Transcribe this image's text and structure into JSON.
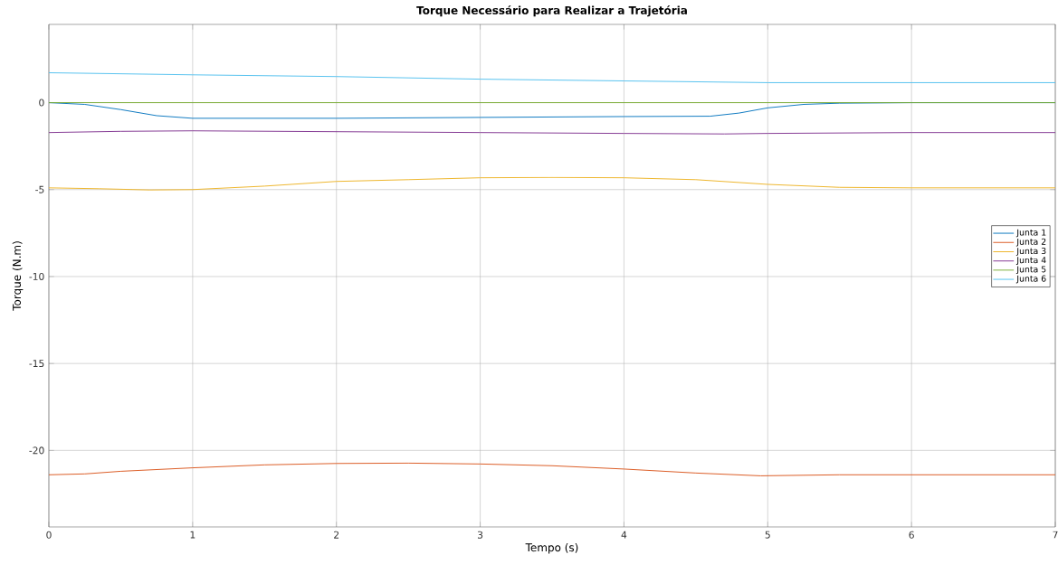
{
  "chart_data": {
    "type": "line",
    "title": "Torque Necessário para Realizar a Trajetória",
    "xlabel": "Tempo (s)",
    "ylabel": "Torque (N.m)",
    "xlim": [
      0,
      7
    ],
    "ylim": [
      -24.4,
      4.5
    ],
    "xticks": [
      0,
      1,
      2,
      3,
      4,
      5,
      6,
      7
    ],
    "yticks": [
      -20,
      -15,
      -10,
      -5,
      0
    ],
    "grid": true,
    "legend": "right",
    "line_style": "solid",
    "marker": "none",
    "series": [
      {
        "name": "Junta 1",
        "color": "#0072bd",
        "x": [
          0,
          0.25,
          0.5,
          0.75,
          1,
          2,
          3,
          4,
          4.6,
          4.8,
          5,
          5.25,
          5.5,
          6,
          7
        ],
        "values": [
          0,
          -0.1,
          -0.4,
          -0.75,
          -0.9,
          -0.9,
          -0.85,
          -0.8,
          -0.78,
          -0.6,
          -0.3,
          -0.1,
          -0.03,
          0,
          0
        ]
      },
      {
        "name": "Junta 2",
        "color": "#d95319",
        "x": [
          0,
          0.25,
          0.5,
          1,
          1.5,
          2,
          2.5,
          3,
          3.5,
          4,
          4.5,
          4.95,
          5.5,
          6,
          7
        ],
        "values": [
          -21.4,
          -21.35,
          -21.2,
          -21.0,
          -20.83,
          -20.75,
          -20.73,
          -20.78,
          -20.88,
          -21.07,
          -21.3,
          -21.46,
          -21.4,
          -21.4,
          -21.4
        ]
      },
      {
        "name": "Junta 3",
        "color": "#edb120",
        "x": [
          0,
          0.35,
          0.7,
          1,
          1.5,
          2,
          2.5,
          3,
          3.5,
          4,
          4.5,
          5,
          5.5,
          6,
          7
        ],
        "values": [
          -4.9,
          -4.95,
          -5.02,
          -5.0,
          -4.8,
          -4.53,
          -4.43,
          -4.32,
          -4.3,
          -4.32,
          -4.43,
          -4.7,
          -4.87,
          -4.9,
          -4.9
        ]
      },
      {
        "name": "Junta 4",
        "color": "#7e2f8e",
        "x": [
          0,
          0.5,
          1,
          2,
          3,
          4,
          4.7,
          5,
          6,
          7
        ],
        "values": [
          -1.72,
          -1.65,
          -1.62,
          -1.67,
          -1.72,
          -1.77,
          -1.8,
          -1.77,
          -1.72,
          -1.72
        ]
      },
      {
        "name": "Junta 5",
        "color": "#77ac30",
        "x": [
          0,
          7
        ],
        "values": [
          0,
          0
        ]
      },
      {
        "name": "Junta 6",
        "color": "#4dbeee",
        "x": [
          0,
          1,
          2,
          3,
          4,
          5,
          6,
          7
        ],
        "values": [
          1.72,
          1.6,
          1.5,
          1.35,
          1.25,
          1.15,
          1.15,
          1.15
        ]
      }
    ]
  }
}
